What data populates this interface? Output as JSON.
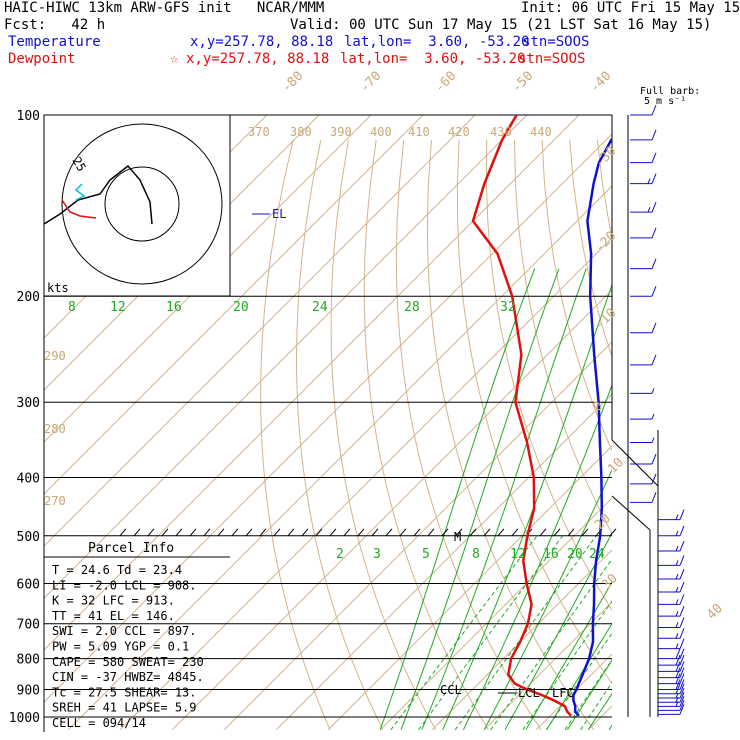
{
  "header": {
    "model_line": "HAIC-HIWC 13km ARW-GFS init   NCAR/MMM",
    "init": "Init: 06 UTC Fri 15 May 15",
    "fcst": "Fcst:   42 h",
    "valid": "Valid: 00 UTC Sun 17 May 15 (21 LST Sat 16 May 15)",
    "temp_label": "Temperature",
    "temp_xy": "x,y=257.78, 88.18",
    "temp_latlon": "lat,lon=  3.60, -53.20",
    "temp_stn": "stn=SOOS",
    "dew_label": "Dewpoint",
    "dew_xy": "x,y=257.78, 88.18",
    "dew_latlon": "lat,lon=  3.60, -53.20",
    "dew_stn": "stn=SOOS"
  },
  "barb_label": {
    "line1": "Full barb:",
    "line2": "5 m s⁻¹"
  },
  "parcel_info": {
    "title": "Parcel Info",
    "rows": [
      "T   =   24.6  Td =  23.4",
      "LI  =   -2.0  LCL =  908.",
      "K   =     32  LFC =  913.",
      "TT  =     41  EL  =  146.",
      "SWI =    2.0  CCL =  897.",
      "PW  =   5.09  YGP =   0.1",
      "CAPE =   580  SWEAT=  230",
      "CIN  =   -37  HWBZ= 4845.",
      "Tc  =   27.5  SHEAR=  13.",
      "SREH =    41  LAPSE=  5.9",
      "CELL = 094/14"
    ]
  },
  "hodograph": {
    "ring_label": "25",
    "units": "kts",
    "colors": {
      "ring": "#000000",
      "trace": "#000000",
      "red": "#e01010",
      "cyan": "#00c0e0"
    }
  },
  "chart_data": {
    "type": "line",
    "title": "",
    "pressure_levels": [
      1000,
      900,
      800,
      700,
      600,
      500,
      400,
      300,
      200,
      100
    ],
    "pressure_labels": [
      "1000",
      "900",
      "800",
      "700",
      "600",
      "500",
      "400",
      "300",
      "200",
      "100"
    ],
    "temp_ticks": [
      "-80",
      "-70",
      "-60",
      "-50",
      "-40",
      "-30",
      "-20",
      "-10",
      "0",
      "10",
      "20",
      "30",
      "40"
    ],
    "theta_labels": [
      "370",
      "380",
      "390",
      "400",
      "410",
      "420",
      "430",
      "440",
      "290",
      "280",
      "270"
    ],
    "mixing_ratio_labels_upper": [
      "8",
      "12",
      "16",
      "20",
      "24",
      "28",
      "32"
    ],
    "mixing_ratio_labels_lower": [
      "2",
      "3",
      "5",
      "8",
      "12",
      "16",
      "20",
      "24"
    ],
    "annotations": [
      "EL",
      "CCL",
      "LCL",
      "LFC",
      "M"
    ],
    "series": [
      {
        "name": "Temperature",
        "color": "#1010d0",
        "points": [
          [
            995,
            25.5
          ],
          [
            980,
            24.0
          ],
          [
            960,
            23.0
          ],
          [
            940,
            21.6
          ],
          [
            920,
            20.5
          ],
          [
            900,
            20.0
          ],
          [
            880,
            19.3
          ],
          [
            850,
            18.3
          ],
          [
            800,
            16.5
          ],
          [
            750,
            14.0
          ],
          [
            700,
            10.5
          ],
          [
            650,
            7.0
          ],
          [
            600,
            3.0
          ],
          [
            550,
            -1.0
          ],
          [
            500,
            -5.0
          ],
          [
            450,
            -10.0
          ],
          [
            400,
            -16.0
          ],
          [
            350,
            -23.0
          ],
          [
            300,
            -31.0
          ],
          [
            250,
            -41.0
          ],
          [
            200,
            -53.0
          ],
          [
            170,
            -61.0
          ],
          [
            150,
            -68.0
          ],
          [
            130,
            -74.0
          ],
          [
            120,
            -77.0
          ],
          [
            110,
            -79.0
          ],
          [
            100,
            -77.0
          ]
        ]
      },
      {
        "name": "Dewpoint",
        "color": "#e01010",
        "points": [
          [
            995,
            24.0
          ],
          [
            980,
            22.5
          ],
          [
            960,
            21.0
          ],
          [
            940,
            18.0
          ],
          [
            920,
            14.5
          ],
          [
            900,
            10.5
          ],
          [
            880,
            7.0
          ],
          [
            850,
            4.0
          ],
          [
            800,
            1.5
          ],
          [
            750,
            0.0
          ],
          [
            700,
            -2.0
          ],
          [
            650,
            -5.0
          ],
          [
            600,
            -10.0
          ],
          [
            550,
            -15.0
          ],
          [
            500,
            -19.0
          ],
          [
            450,
            -23.0
          ],
          [
            400,
            -29.0
          ],
          [
            350,
            -37.0
          ],
          [
            300,
            -47.0
          ],
          [
            250,
            -55.0
          ],
          [
            200,
            -68.0
          ],
          [
            170,
            -79.0
          ],
          [
            150,
            -90.0
          ],
          [
            130,
            -95.0
          ],
          [
            110,
            -100.0
          ],
          [
            100,
            -102.0
          ]
        ]
      }
    ],
    "wind_barbs": [
      {
        "p": 990,
        "kt": 10
      },
      {
        "p": 975,
        "kt": 10
      },
      {
        "p": 960,
        "kt": 15
      },
      {
        "p": 945,
        "kt": 15
      },
      {
        "p": 930,
        "kt": 15
      },
      {
        "p": 915,
        "kt": 20
      },
      {
        "p": 900,
        "kt": 20
      },
      {
        "p": 880,
        "kt": 20
      },
      {
        "p": 860,
        "kt": 20
      },
      {
        "p": 840,
        "kt": 20
      },
      {
        "p": 820,
        "kt": 20
      },
      {
        "p": 800,
        "kt": 20
      },
      {
        "p": 770,
        "kt": 15
      },
      {
        "p": 740,
        "kt": 15
      },
      {
        "p": 710,
        "kt": 15
      },
      {
        "p": 680,
        "kt": 15
      },
      {
        "p": 650,
        "kt": 15
      },
      {
        "p": 620,
        "kt": 15
      },
      {
        "p": 590,
        "kt": 15
      },
      {
        "p": 560,
        "kt": 15
      },
      {
        "p": 530,
        "kt": 15
      },
      {
        "p": 500,
        "kt": 15
      },
      {
        "p": 470,
        "kt": 15
      },
      {
        "p": 440,
        "kt": 10
      },
      {
        "p": 410,
        "kt": 10
      },
      {
        "p": 380,
        "kt": 10
      },
      {
        "p": 350,
        "kt": 5
      },
      {
        "p": 320,
        "kt": 5
      },
      {
        "p": 290,
        "kt": 5
      },
      {
        "p": 260,
        "kt": 10
      },
      {
        "p": 230,
        "kt": 10
      },
      {
        "p": 200,
        "kt": 10
      },
      {
        "p": 180,
        "kt": 10
      },
      {
        "p": 160,
        "kt": 10
      },
      {
        "p": 145,
        "kt": 15
      },
      {
        "p": 130,
        "kt": 15
      },
      {
        "p": 120,
        "kt": 10
      },
      {
        "p": 110,
        "kt": 10
      },
      {
        "p": 100,
        "kt": 10
      }
    ]
  }
}
